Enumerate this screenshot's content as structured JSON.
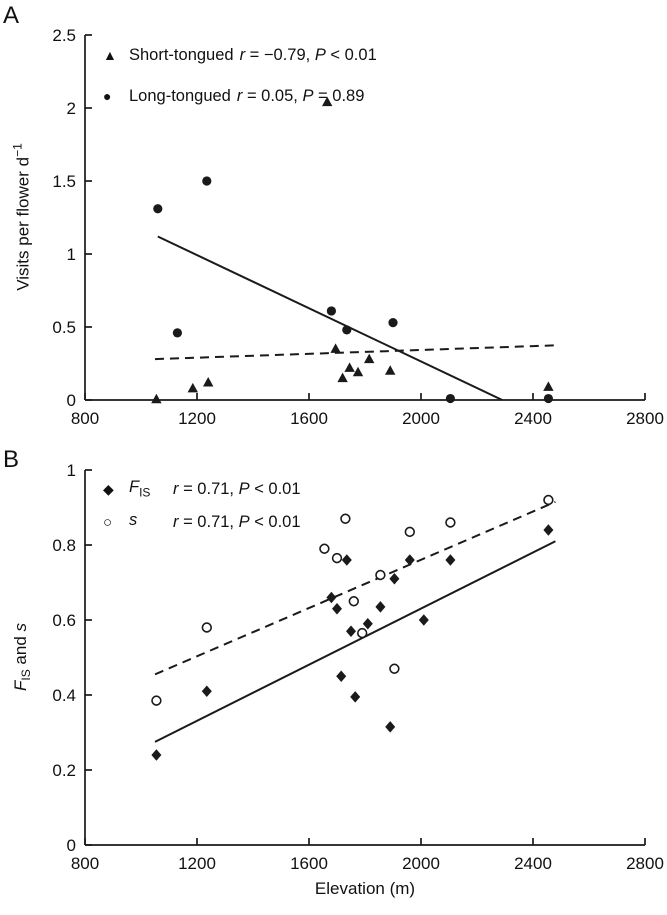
{
  "figure": {
    "panels": [
      {
        "label": "A"
      },
      {
        "label": "B"
      }
    ],
    "xlabel": "Elevation (m)"
  },
  "chart_data": [
    {
      "type": "scatter",
      "panel": "A",
      "title": "",
      "ylabel_main": "Visits per flower d",
      "ylabel_sup": "−1",
      "xlabel": "",
      "xlim": [
        800,
        2800
      ],
      "ylim": [
        0,
        2.5
      ],
      "xticks": [
        800,
        1200,
        1600,
        2000,
        2400,
        2800
      ],
      "yticks": [
        0,
        0.5,
        1,
        1.5,
        2,
        2.5
      ],
      "grid": false,
      "legend_position": "top-left",
      "series": [
        {
          "name": "Short-tongued",
          "marker": "filled-triangle",
          "marker_glyph": "▲",
          "r_label": "r",
          "r_text": " = −0.79, ",
          "p_label": "P",
          "p_text": " < 0.01",
          "trend": {
            "style": "solid",
            "x": [
              1060,
              2290
            ],
            "y": [
              1.12,
              0
            ]
          },
          "points": [
            [
              1055,
              0.005
            ],
            [
              1185,
              0.08
            ],
            [
              1240,
              0.12
            ],
            [
              1665,
              2.04
            ],
            [
              1695,
              0.35
            ],
            [
              1720,
              0.15
            ],
            [
              1745,
              0.22
            ],
            [
              1775,
              0.19
            ],
            [
              1815,
              0.28
            ],
            [
              1890,
              0.2
            ],
            [
              2455,
              0.09
            ]
          ]
        },
        {
          "name": "Long-tongued",
          "marker": "filled-circle",
          "marker_glyph": "●",
          "r_label": "r",
          "r_text": " = 0.05, ",
          "p_label": "P",
          "p_text": " = 0.89",
          "trend": {
            "style": "dashed",
            "x": [
              1050,
              2490
            ],
            "y": [
              0.28,
              0.375
            ]
          },
          "points": [
            [
              1060,
              1.31
            ],
            [
              1130,
              0.46
            ],
            [
              1235,
              1.5
            ],
            [
              1680,
              0.61
            ],
            [
              1735,
              0.48
            ],
            [
              1900,
              0.53
            ],
            [
              2105,
              0.01
            ],
            [
              2455,
              0.01
            ]
          ]
        }
      ]
    },
    {
      "type": "scatter",
      "panel": "B",
      "title": "",
      "ylabel_parts": {
        "f": "F",
        "sub": "IS",
        "mid": " and ",
        "s": "s"
      },
      "xlabel": "Elevation (m)",
      "xlim": [
        800,
        2800
      ],
      "ylim": [
        0,
        1
      ],
      "xticks": [
        800,
        1200,
        1600,
        2000,
        2400,
        2800
      ],
      "yticks": [
        0,
        0.2,
        0.4,
        0.6,
        0.8,
        1
      ],
      "grid": false,
      "legend_position": "top-left",
      "series": [
        {
          "name_main": "F",
          "name_sub": "IS",
          "marker": "filled-diamond",
          "marker_glyph": "◆",
          "r_label": "r",
          "r_text": " = 0.71, ",
          "p_label": "P",
          "p_text": " < 0.01",
          "trend": {
            "style": "solid",
            "x": [
              1050,
              2480
            ],
            "y": [
              0.275,
              0.81
            ]
          },
          "points": [
            [
              1055,
              0.24
            ],
            [
              1235,
              0.41
            ],
            [
              1680,
              0.66
            ],
            [
              1700,
              0.63
            ],
            [
              1715,
              0.45
            ],
            [
              1735,
              0.76
            ],
            [
              1750,
              0.57
            ],
            [
              1765,
              0.395
            ],
            [
              1810,
              0.59
            ],
            [
              1855,
              0.635
            ],
            [
              1890,
              0.315
            ],
            [
              1905,
              0.71
            ],
            [
              1960,
              0.76
            ],
            [
              2010,
              0.6
            ],
            [
              2105,
              0.76
            ],
            [
              2455,
              0.84
            ]
          ]
        },
        {
          "name_main": "s",
          "name_sub": "",
          "marker": "open-circle",
          "marker_glyph": "○",
          "r_label": "r",
          "r_text": " = 0.71, ",
          "p_label": "P",
          "p_text": " < 0.01",
          "trend": {
            "style": "dashed",
            "x": [
              1050,
              2480
            ],
            "y": [
              0.455,
              0.915
            ]
          },
          "points": [
            [
              1055,
              0.385
            ],
            [
              1235,
              0.58
            ],
            [
              1655,
              0.79
            ],
            [
              1700,
              0.765
            ],
            [
              1730,
              0.87
            ],
            [
              1760,
              0.65
            ],
            [
              1790,
              0.565
            ],
            [
              1855,
              0.72
            ],
            [
              1905,
              0.47
            ],
            [
              1960,
              0.835
            ],
            [
              2105,
              0.86
            ],
            [
              2455,
              0.92
            ]
          ]
        }
      ]
    }
  ]
}
